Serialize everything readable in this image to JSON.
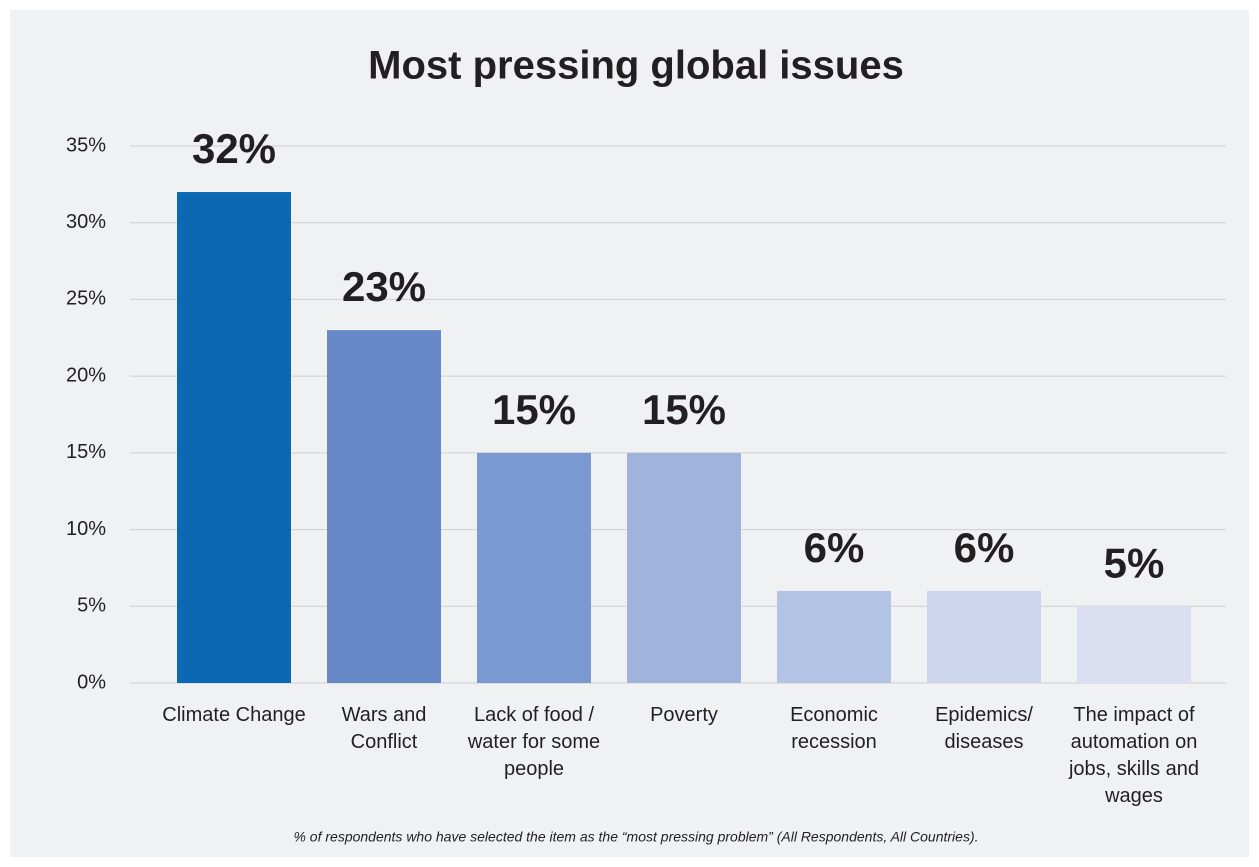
{
  "chart_data": {
    "type": "bar",
    "title": "Most pressing global issues",
    "categories": [
      "Climate Change",
      "Wars and Conflict",
      "Lack of food / water for some people",
      "Poverty",
      "Economic recession",
      "Epidemics/ diseases",
      "The impact of automation on jobs, skills and wages"
    ],
    "values": [
      32,
      23,
      15,
      15,
      6,
      6,
      5
    ],
    "value_labels": [
      "32%",
      "23%",
      "15%",
      "15%",
      "6%",
      "6%",
      "5%"
    ],
    "colors": [
      "#0b69b3",
      "#6889c7",
      "#7a99d0",
      "#a0b3dc",
      "#b3c3e3",
      "#cdd5ee",
      "#dae0f2"
    ],
    "ylim": [
      0,
      35
    ],
    "yticks": [
      {
        "value": 0,
        "label": "0%"
      },
      {
        "value": 5,
        "label": "5%"
      },
      {
        "value": 10,
        "label": "10%"
      },
      {
        "value": 15,
        "label": "15%"
      },
      {
        "value": 20,
        "label": "20%"
      },
      {
        "value": 25,
        "label": "25%"
      },
      {
        "value": 30,
        "label": "30%"
      },
      {
        "value": 35,
        "label": "35%"
      }
    ],
    "grid": true,
    "note": "% of respondents who have selected the item as the “most pressing problem” (All Respondents, All Countries)."
  }
}
